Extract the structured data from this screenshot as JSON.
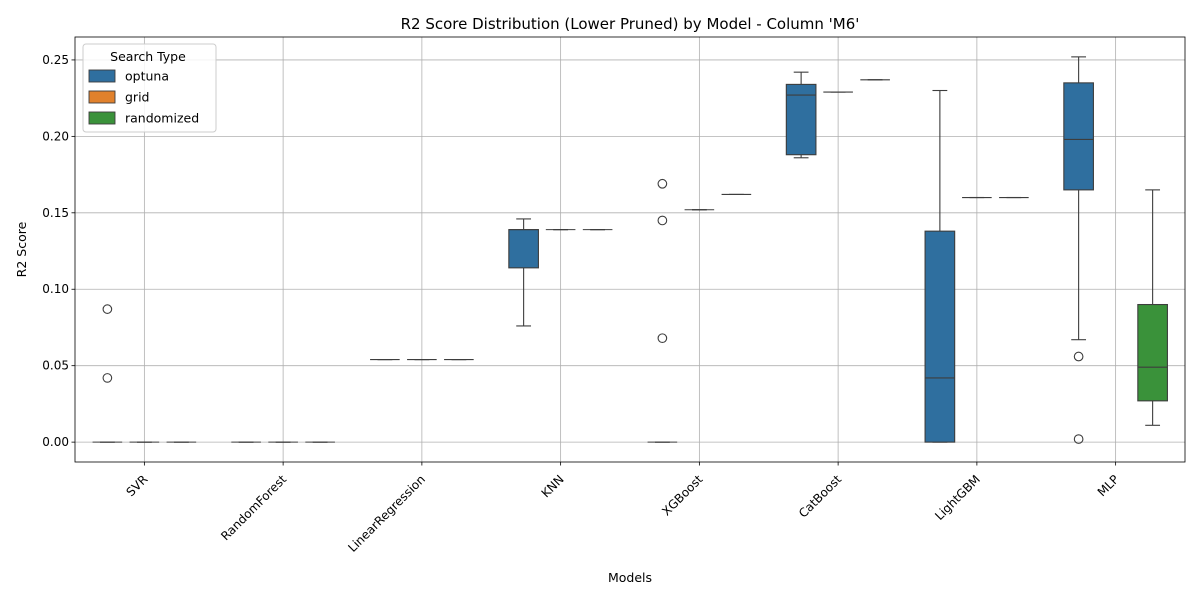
{
  "chart_data": {
    "type": "box",
    "title": "R2 Score Distribution (Lower Pruned) by Model - Column 'M6'",
    "xlabel": "Models",
    "ylabel": "R2 Score",
    "ylim": [
      -0.013,
      0.265
    ],
    "yticks": [
      0.0,
      0.05,
      0.1,
      0.15,
      0.2,
      0.25
    ],
    "ytick_labels": [
      "0.00",
      "0.05",
      "0.10",
      "0.15",
      "0.20",
      "0.25"
    ],
    "grid": true,
    "legend": {
      "title": "Search Type",
      "placement": "top-left"
    },
    "categories": [
      "SVR",
      "RandomForest",
      "LinearRegression",
      "KNN",
      "XGBoost",
      "CatBoost",
      "LightGBM",
      "MLP"
    ],
    "series": [
      {
        "name": "optuna",
        "color": "#2f6f9f",
        "boxes": [
          {
            "category": "SVR",
            "whislo": 0.0,
            "q1": 0.0,
            "med": 0.0,
            "q3": 0.0,
            "whishi": 0.0,
            "fliers": [
              0.087,
              0.042
            ]
          },
          {
            "category": "RandomForest",
            "whislo": 0.0,
            "q1": 0.0,
            "med": 0.0,
            "q3": 0.0,
            "whishi": 0.0,
            "fliers": []
          },
          {
            "category": "LinearRegression",
            "whislo": 0.054,
            "q1": 0.054,
            "med": 0.054,
            "q3": 0.054,
            "whishi": 0.054,
            "fliers": []
          },
          {
            "category": "KNN",
            "whislo": 0.076,
            "q1": 0.114,
            "med": 0.139,
            "q3": 0.139,
            "whishi": 0.146,
            "fliers": []
          },
          {
            "category": "XGBoost",
            "whislo": 0.0,
            "q1": 0.0,
            "med": 0.0,
            "q3": 0.0,
            "whishi": 0.0,
            "fliers": [
              0.169,
              0.145,
              0.068
            ]
          },
          {
            "category": "CatBoost",
            "whislo": 0.186,
            "q1": 0.188,
            "med": 0.227,
            "q3": 0.234,
            "whishi": 0.242,
            "fliers": []
          },
          {
            "category": "LightGBM",
            "whislo": 0.0,
            "q1": 0.0,
            "med": 0.042,
            "q3": 0.138,
            "whishi": 0.23,
            "fliers": []
          },
          {
            "category": "MLP",
            "whislo": 0.067,
            "q1": 0.165,
            "med": 0.198,
            "q3": 0.235,
            "whishi": 0.252,
            "fliers": [
              0.056,
              0.002
            ]
          }
        ]
      },
      {
        "name": "grid",
        "color": "#e1812c",
        "boxes": [
          {
            "category": "SVR",
            "whislo": 0.0,
            "q1": 0.0,
            "med": 0.0,
            "q3": 0.0,
            "whishi": 0.0,
            "fliers": []
          },
          {
            "category": "RandomForest",
            "whislo": 0.0,
            "q1": 0.0,
            "med": 0.0,
            "q3": 0.0,
            "whishi": 0.0,
            "fliers": []
          },
          {
            "category": "LinearRegression",
            "whislo": 0.054,
            "q1": 0.054,
            "med": 0.054,
            "q3": 0.054,
            "whishi": 0.054,
            "fliers": []
          },
          {
            "category": "KNN",
            "whislo": 0.139,
            "q1": 0.139,
            "med": 0.139,
            "q3": 0.139,
            "whishi": 0.139,
            "fliers": []
          },
          {
            "category": "XGBoost",
            "whislo": 0.152,
            "q1": 0.152,
            "med": 0.152,
            "q3": 0.152,
            "whishi": 0.152,
            "fliers": []
          },
          {
            "category": "CatBoost",
            "whislo": 0.229,
            "q1": 0.229,
            "med": 0.229,
            "q3": 0.229,
            "whishi": 0.229,
            "fliers": []
          },
          {
            "category": "LightGBM",
            "whislo": 0.16,
            "q1": 0.16,
            "med": 0.16,
            "q3": 0.16,
            "whishi": 0.16,
            "fliers": []
          }
        ]
      },
      {
        "name": "randomized",
        "color": "#3a923a",
        "boxes": [
          {
            "category": "SVR",
            "whislo": 0.0,
            "q1": 0.0,
            "med": 0.0,
            "q3": 0.0,
            "whishi": 0.0,
            "fliers": []
          },
          {
            "category": "RandomForest",
            "whislo": 0.0,
            "q1": 0.0,
            "med": 0.0,
            "q3": 0.0,
            "whishi": 0.0,
            "fliers": []
          },
          {
            "category": "LinearRegression",
            "whislo": 0.054,
            "q1": 0.054,
            "med": 0.054,
            "q3": 0.054,
            "whishi": 0.054,
            "fliers": []
          },
          {
            "category": "KNN",
            "whislo": 0.139,
            "q1": 0.139,
            "med": 0.139,
            "q3": 0.139,
            "whishi": 0.139,
            "fliers": []
          },
          {
            "category": "XGBoost",
            "whislo": 0.162,
            "q1": 0.162,
            "med": 0.162,
            "q3": 0.162,
            "whishi": 0.162,
            "fliers": []
          },
          {
            "category": "CatBoost",
            "whislo": 0.237,
            "q1": 0.237,
            "med": 0.237,
            "q3": 0.237,
            "whishi": 0.237,
            "fliers": []
          },
          {
            "category": "LightGBM",
            "whislo": 0.16,
            "q1": 0.16,
            "med": 0.16,
            "q3": 0.16,
            "whishi": 0.16,
            "fliers": []
          },
          {
            "category": "MLP",
            "whislo": 0.011,
            "q1": 0.027,
            "med": 0.049,
            "q3": 0.09,
            "whishi": 0.165,
            "fliers": []
          }
        ]
      }
    ]
  }
}
